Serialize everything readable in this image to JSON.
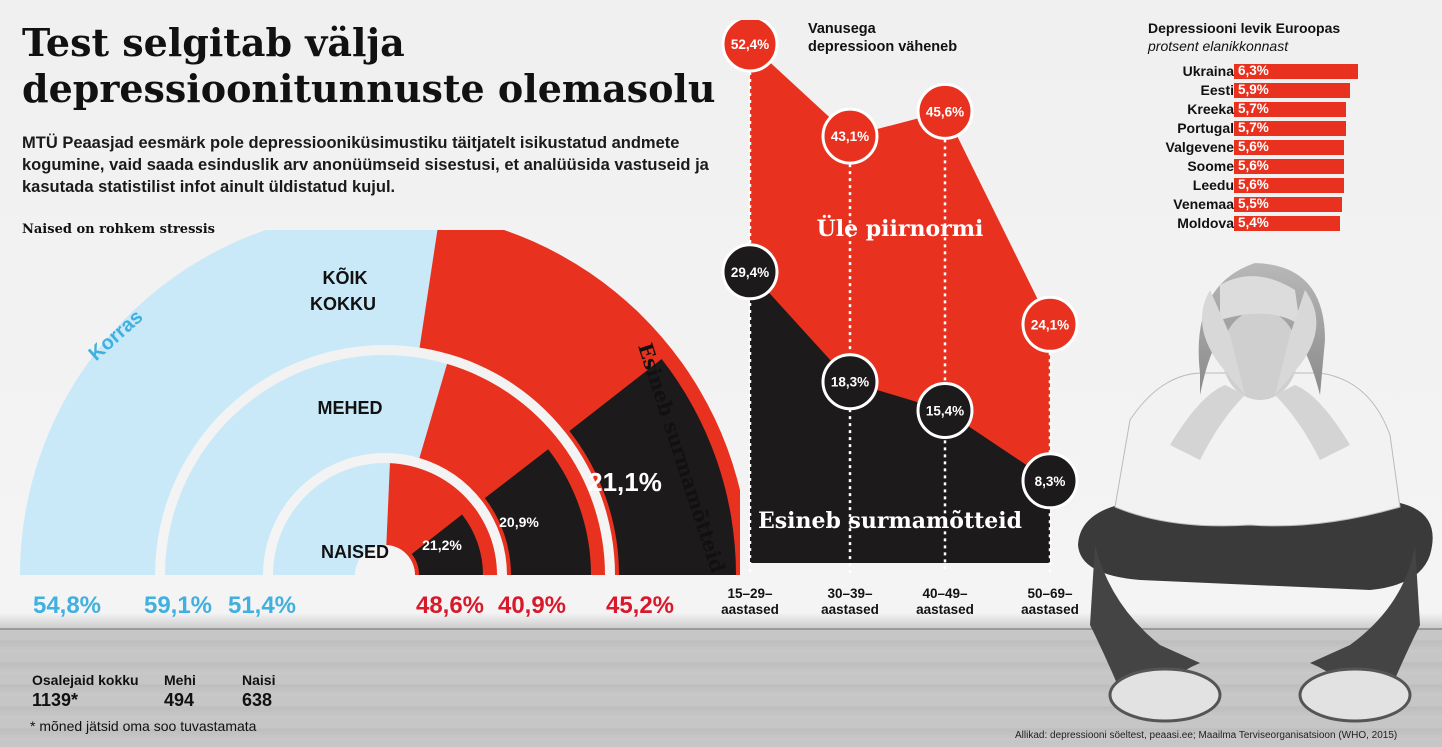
{
  "title_line1": "Test selgitab välja",
  "title_line2": "depressioonitunnuste olemasolu",
  "lead": "MTÜ Peaasjad eesmärk pole depressiooniküsimustiku täitjatelt isikustatud andmete kogumine, vaid saada esinduslik arv anonüümseid sisestusi, et analüüsida vastuseid ja kasutada statistilist infot ainult üldistatud kujul.",
  "colors": {
    "red": "#e8321f",
    "light_blue": "#c9e9f8",
    "blue_text": "#3fb0e0",
    "black": "#1c1a1b",
    "red_text": "#d8192b"
  },
  "chart_data": [
    {
      "type": "pie",
      "title": "Naised on rohkem stressis",
      "rings": [
        {
          "name": "KÕIK KOKKU",
          "korras": 54.8,
          "yle_piirnormi": 45.2,
          "esineb_surmamotteid": 21.1,
          "korras_label": "54,8%",
          "yle_label": "45,2%",
          "surma_label": "21,1%"
        },
        {
          "name": "MEHED",
          "korras": 59.1,
          "yle_piirnormi": 40.9,
          "esineb_surmamotteid": 20.9,
          "korras_label": "59,1%",
          "yle_label": "40,9%",
          "surma_label": "20,9%"
        },
        {
          "name": "NAISED",
          "korras": 51.4,
          "yle_piirnormi": 48.6,
          "esineb_surmamotteid": 21.2,
          "korras_label": "51,4%",
          "yle_label": "48,6%",
          "surma_label": "21,2%"
        }
      ],
      "series_labels": {
        "korras": "Korras",
        "yle": "Üle piirnormi",
        "surma": "Esineb surmamõtteid"
      }
    },
    {
      "type": "area",
      "title": "Vanusega depressioon väheneb",
      "title_line1": "Vanusega",
      "title_line2": "depressioon väheneb",
      "categories": [
        "15–29-aastased",
        "30–39-aastased",
        "40–49-aastased",
        "50–69-aastased"
      ],
      "category_lines": [
        [
          "15–29–",
          "aastased"
        ],
        [
          "30–39–",
          "aastased"
        ],
        [
          "40–49–",
          "aastased"
        ],
        [
          "50–69–",
          "aastased"
        ]
      ],
      "series": [
        {
          "name": "Üle piirnormi",
          "values": [
            52.4,
            43.1,
            45.6,
            24.1
          ],
          "labels": [
            "52,4%",
            "43,1%",
            "45,6%",
            "24,1%"
          ]
        },
        {
          "name": "Esineb surmamõtteid",
          "values": [
            29.4,
            18.3,
            15.4,
            8.3
          ],
          "labels": [
            "29,4%",
            "18,3%",
            "15,4%",
            "8,3%"
          ]
        }
      ],
      "ylim": [
        0,
        55
      ]
    },
    {
      "type": "bar",
      "title": "Depressiooni levik Euroopas",
      "subtitle": "protsent elanikkonnast",
      "categories": [
        "Ukraina",
        "Eesti",
        "Kreeka",
        "Portugal",
        "Valgevene",
        "Soome",
        "Leedu",
        "Venemaa",
        "Moldova"
      ],
      "values": [
        6.3,
        5.9,
        5.7,
        5.7,
        5.6,
        5.6,
        5.6,
        5.5,
        5.4
      ],
      "labels": [
        "6,3%",
        "5,9%",
        "5,7%",
        "5,7%",
        "5,6%",
        "5,6%",
        "5,6%",
        "5,5%",
        "5,4%"
      ]
    }
  ],
  "stats": {
    "participants_label": "Osalejaid kokku",
    "participants_value": "1139*",
    "men_label": "Mehi",
    "men_value": "494",
    "women_label": "Naisi",
    "women_value": "638"
  },
  "footnote": "* mõned jätsid oma soo tuvastamata",
  "source": "Allikad: depressiooni söeltest, peaasi.ee; Maailma Terviseorganisatsioon (WHO, 2015)"
}
